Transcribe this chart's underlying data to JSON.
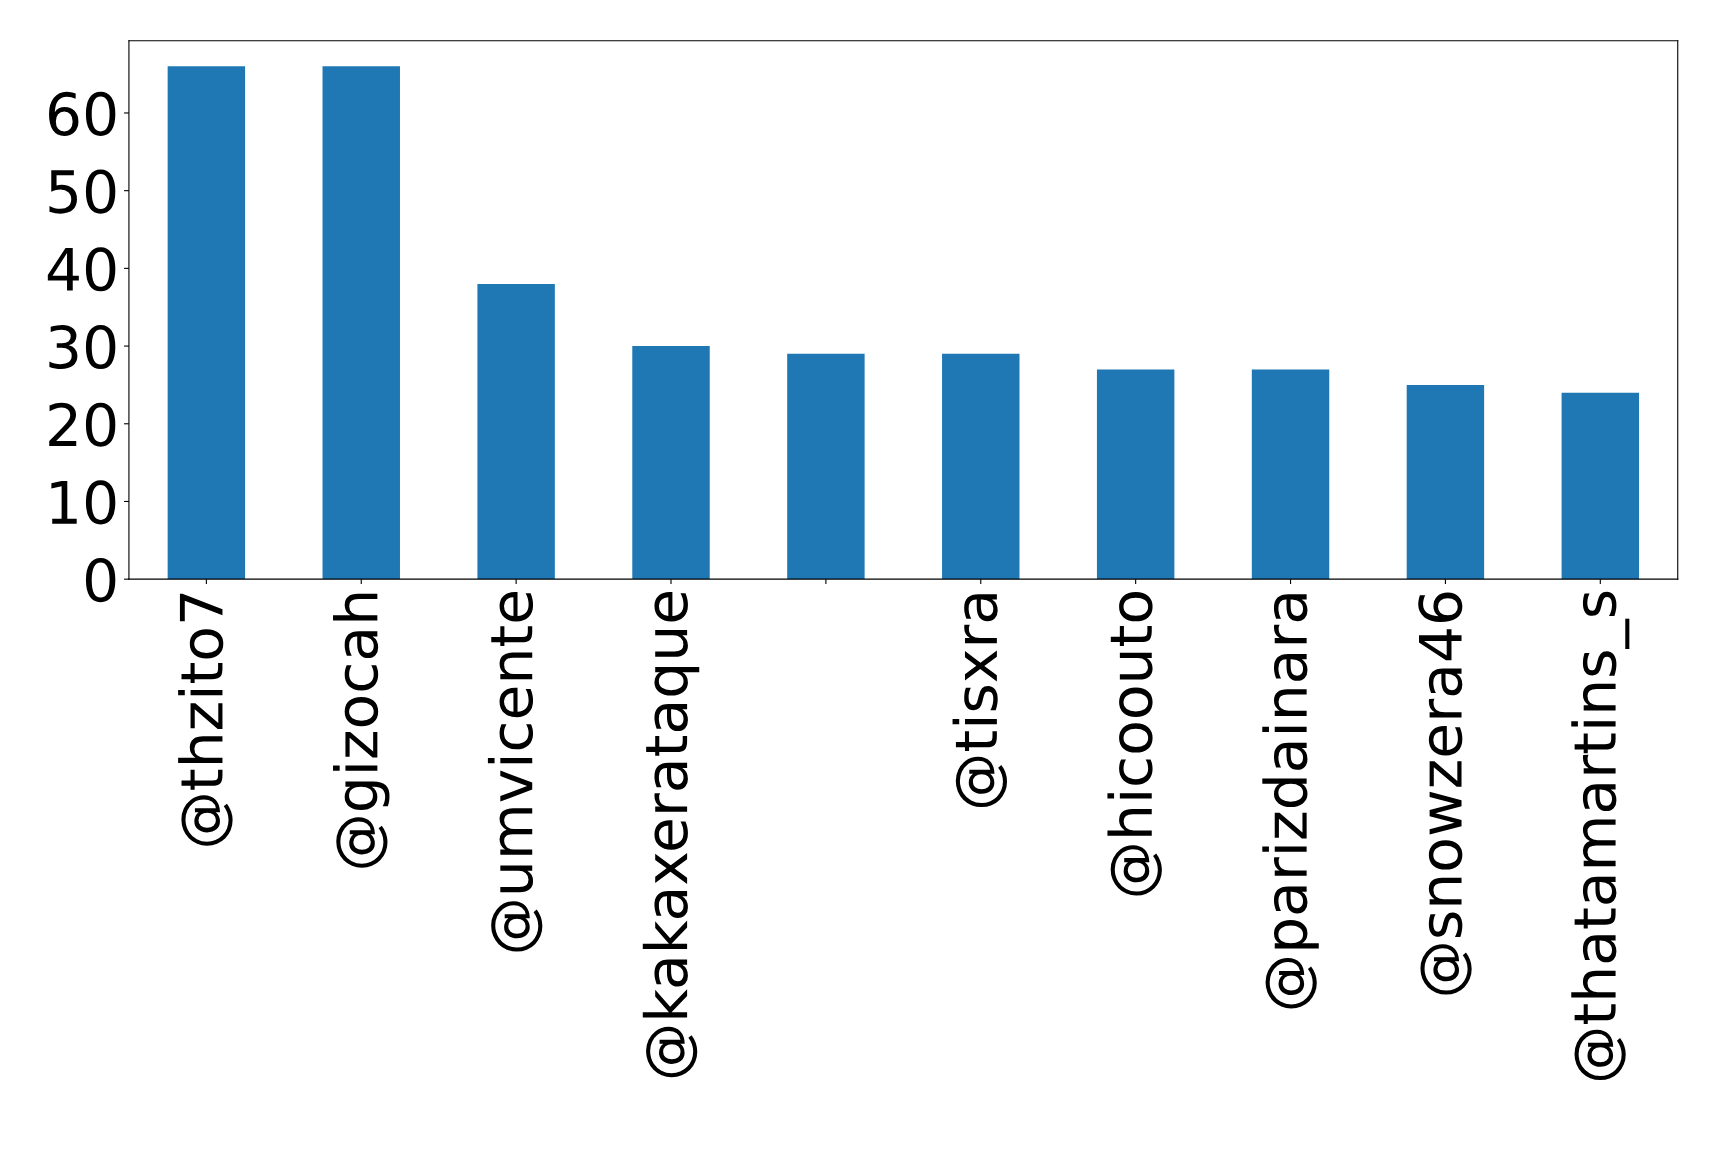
{
  "chart_data": {
    "type": "bar",
    "categories": [
      "@thzito7",
      "@gizocah",
      "@umvicente",
      "@kakaxerataque",
      null,
      "@tisxra",
      "@hicoouto",
      "@parizdainara",
      "@snowzera46",
      "@thatamartins_s"
    ],
    "values": [
      66,
      66,
      38,
      30,
      29,
      29,
      27,
      27,
      25,
      24
    ],
    "color": "#1f77b4",
    "ylim": [
      0,
      69.3
    ],
    "yticks": [
      0,
      10,
      20,
      30,
      40,
      50,
      60
    ],
    "grid": false,
    "legend": false
  }
}
